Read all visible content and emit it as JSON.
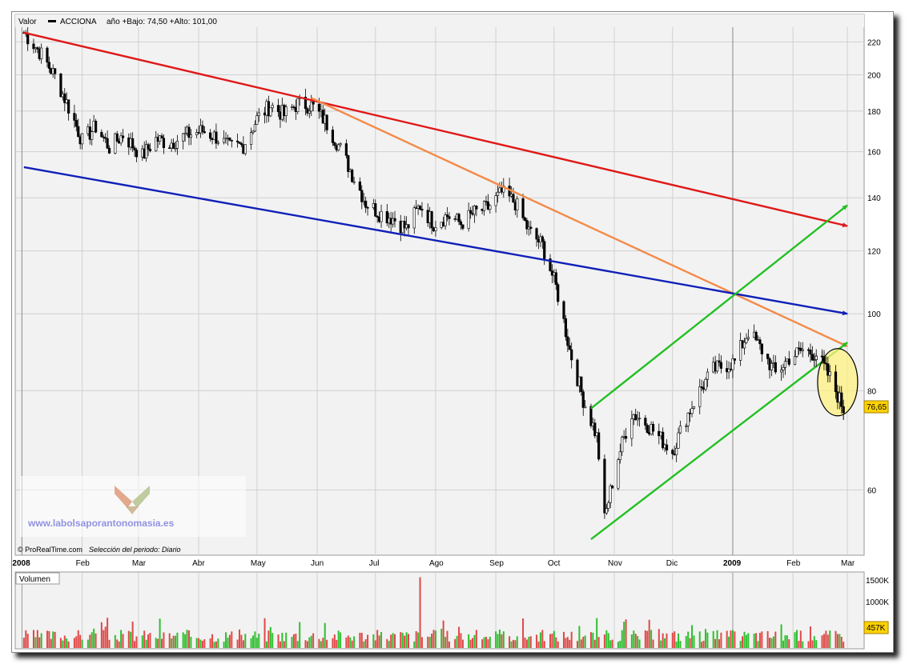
{
  "header": {
    "valor_label": "Valor",
    "ticker": "ACCIONA",
    "stats": "año +Bajo: 74,50 +Alto: 101,00"
  },
  "credit": {
    "source": "© ProRealTime.com",
    "period": "Selección del periodo: Diario"
  },
  "watermark": "www.labolsaporantonomasia.es",
  "price_tag": "76,65",
  "volume": {
    "label": "Volumen",
    "tick_labels": [
      "1500K",
      "1000K"
    ],
    "last_tag": "457K"
  },
  "colors": {
    "bull": "#2fbf2f",
    "bear": "#e04848",
    "red_line": "#e01818",
    "orange_line": "#f48a48",
    "blue_line": "#1020b8",
    "green_line": "#22c022",
    "highlight": "#fff080"
  },
  "chart_data": {
    "type": "line",
    "y_scale": "log",
    "ylim": [
      50,
      228
    ],
    "y_ticks": [
      60,
      80,
      100,
      120,
      140,
      160,
      180,
      200,
      220
    ],
    "x_ticks": [
      "2008",
      "Feb",
      "Mar",
      "Abr",
      "May",
      "Jun",
      "Jul",
      "Ago",
      "Sep",
      "Oct",
      "Nov",
      "Dic",
      "2009",
      "Feb",
      "Mar"
    ],
    "grid": true,
    "legend": "none",
    "series": [
      {
        "x": [
          "2008-01-02",
          "2008-01-10",
          "2008-01-18",
          "2008-01-25",
          "2008-02-01",
          "2008-02-08",
          "2008-02-15",
          "2008-02-22",
          "2008-03-03",
          "2008-03-10",
          "2008-03-17",
          "2008-03-26",
          "2008-04-03",
          "2008-04-10",
          "2008-04-17",
          "2008-04-24",
          "2008-05-01",
          "2008-05-08",
          "2008-05-15",
          "2008-05-22",
          "2008-05-29",
          "2008-06-05",
          "2008-06-12",
          "2008-06-19",
          "2008-06-26",
          "2008-07-03",
          "2008-07-10",
          "2008-07-17",
          "2008-07-24",
          "2008-07-31",
          "2008-08-07",
          "2008-08-14",
          "2008-08-21",
          "2008-08-28",
          "2008-09-04",
          "2008-09-11",
          "2008-09-18",
          "2008-09-25",
          "2008-10-02",
          "2008-10-09",
          "2008-10-16",
          "2008-10-23",
          "2008-10-27",
          "2008-11-03",
          "2008-11-10",
          "2008-11-17",
          "2008-11-24",
          "2008-12-01",
          "2008-12-08",
          "2008-12-15",
          "2008-12-22",
          "2009-01-02",
          "2009-01-09",
          "2009-01-16",
          "2009-01-23",
          "2009-01-30",
          "2009-02-06",
          "2009-02-13",
          "2009-02-20",
          "2009-02-27"
        ],
        "y": [
          226,
          214,
          199,
          182,
          165,
          172,
          162,
          168,
          158,
          166,
          164,
          168,
          170,
          167,
          162,
          163,
          176,
          183,
          178,
          184,
          183,
          175,
          163,
          150,
          138,
          134,
          132,
          128,
          137,
          130,
          133,
          130,
          134,
          136,
          142,
          138,
          127,
          122,
          108,
          90,
          78,
          70,
          55,
          66,
          75,
          73,
          70,
          67,
          74,
          80,
          85,
          87,
          95,
          90,
          84,
          88,
          90,
          89,
          83,
          76
        ]
      }
    ],
    "trendlines": [
      {
        "color": "red",
        "from": [
          "2008-01-02",
          226
        ],
        "to": [
          "2009-03-01",
          129
        ]
      },
      {
        "color": "orange",
        "from": [
          "2008-05-29",
          187
        ],
        "to": [
          "2009-03-01",
          91
        ]
      },
      {
        "color": "blue",
        "from": [
          "2008-01-02",
          153
        ],
        "to": [
          "2009-03-01",
          100
        ]
      },
      {
        "color": "green",
        "from": [
          "2008-10-20",
          52
        ],
        "to": [
          "2009-03-01",
          92
        ]
      },
      {
        "color": "green",
        "from": [
          "2008-10-20",
          76
        ],
        "to": [
          "2009-03-01",
          137
        ]
      }
    ]
  }
}
